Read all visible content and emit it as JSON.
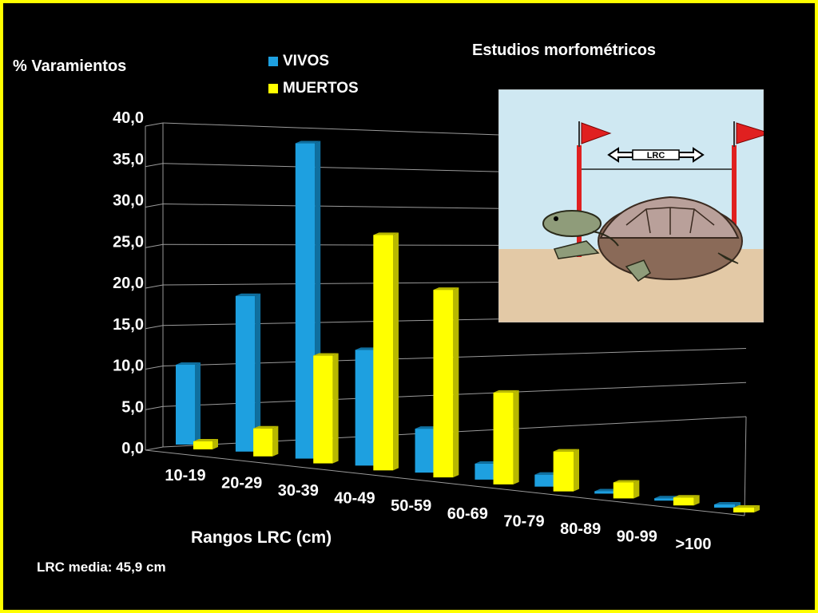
{
  "title": "Estudios morfométricos",
  "y_axis_title": "% Varamientos",
  "x_axis_title": "Rangos LRC (cm)",
  "footnote": "LRC media: 45,9 cm",
  "illustration": {
    "measure_label": "LRC"
  },
  "colors": {
    "vivos": "#1ea0e0",
    "muertos": "#ffff00",
    "background": "#000000",
    "border": "#ffff00"
  },
  "chart_data": {
    "type": "bar",
    "categories": [
      "10-19",
      "20-29",
      "30-39",
      "40-49",
      "50-59",
      "60-69",
      "70-79",
      "80-89",
      "90-99",
      ">100"
    ],
    "series": [
      {
        "name": "VIVOS",
        "values": [
          10.0,
          19.5,
          39.5,
          14.5,
          5.5,
          2.0,
          1.5,
          0.3,
          0.3,
          0.4
        ]
      },
      {
        "name": "MUERTOS",
        "values": [
          1.0,
          3.5,
          13.5,
          29.5,
          23.5,
          11.5,
          5.0,
          2.0,
          1.0,
          0.6
        ]
      }
    ],
    "yticks": [
      "0,0",
      "5,0",
      "10,0",
      "15,0",
      "20,0",
      "25,0",
      "30,0",
      "35,0",
      "40,0"
    ],
    "ylim": [
      0,
      40
    ],
    "grid": true,
    "legend": "top",
    "style": "3d-perspective"
  }
}
